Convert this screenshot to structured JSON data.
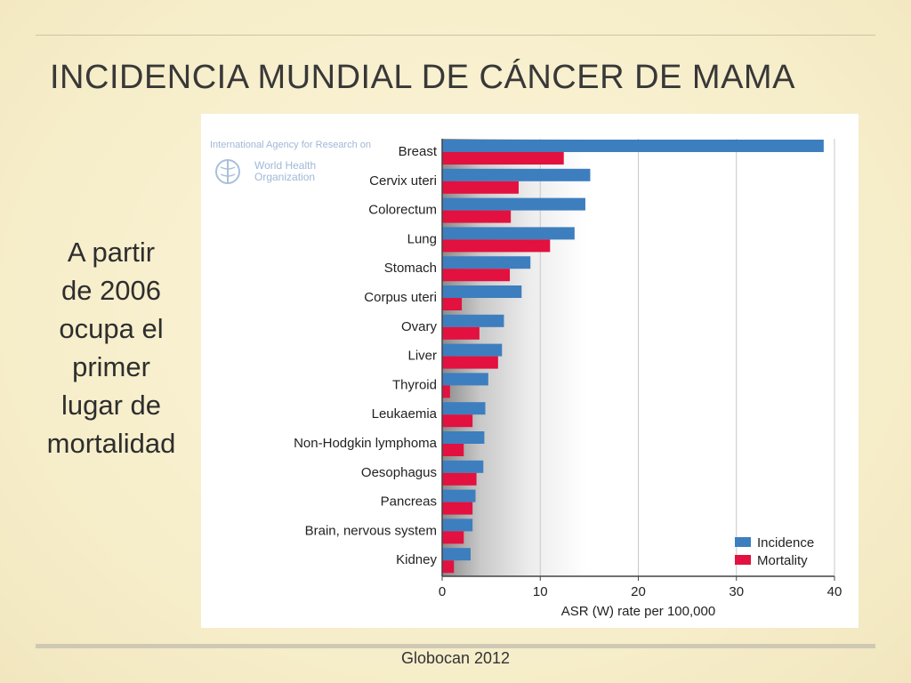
{
  "slide": {
    "title": "INCIDENCIA MUNDIAL DE CÁNCER DE MAMA",
    "side_text_lines": [
      "A partir",
      "de 2006",
      "ocupa el",
      "primer",
      "lugar de",
      "mortalidad"
    ],
    "footer": "Globocan 2012"
  },
  "logo": {
    "agency_text": "International Agency for Research on",
    "org_line1": "World Health",
    "org_line2": "Organization",
    "icon": "who-emblem-icon"
  },
  "chart_data": {
    "type": "bar",
    "orientation": "horizontal",
    "categories": [
      "Breast",
      "Cervix uteri",
      "Colorectum",
      "Lung",
      "Stomach",
      "Corpus uteri",
      "Ovary",
      "Liver",
      "Thyroid",
      "Leukaemia",
      "Non-Hodgkin lymphoma",
      "Oesophagus",
      "Pancreas",
      "Brain, nervous system",
      "Kidney"
    ],
    "series": [
      {
        "name": "Incidence",
        "color": "#3d7ebf",
        "values": [
          38.9,
          15.1,
          14.6,
          13.5,
          9.0,
          8.1,
          6.3,
          6.1,
          4.7,
          4.4,
          4.3,
          4.2,
          3.4,
          3.1,
          2.9
        ]
      },
      {
        "name": "Mortality",
        "color": "#e2113f",
        "values": [
          12.4,
          7.8,
          7.0,
          11.0,
          6.9,
          2.0,
          3.8,
          5.7,
          0.8,
          3.1,
          2.2,
          3.5,
          3.1,
          2.2,
          1.2
        ]
      }
    ],
    "xlabel": "ASR (W) rate per 100,000",
    "xlim": [
      0,
      40
    ],
    "xticks": [
      0,
      10,
      20,
      30,
      40
    ],
    "grid": true,
    "legend_position": "bottom-right"
  }
}
